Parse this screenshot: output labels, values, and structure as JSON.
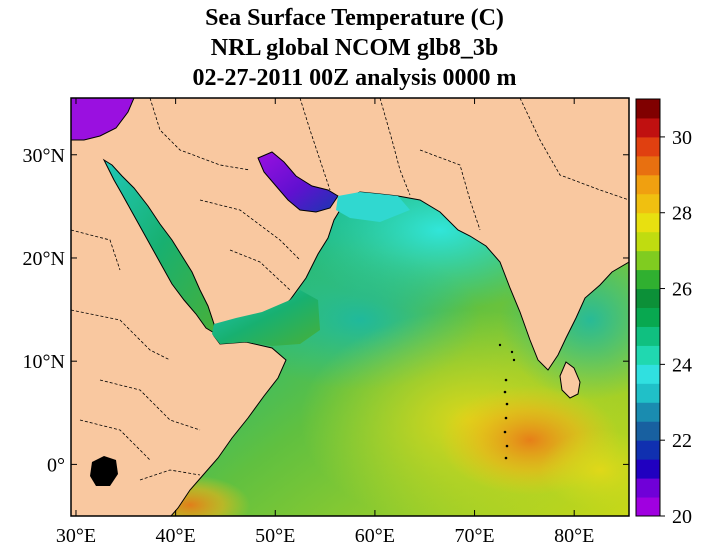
{
  "title": {
    "line1": "Sea Surface Temperature (C)",
    "line2": "NRL global NCOM glb8_3b",
    "line3": "02-27-2011 00Z analysis   0000 m"
  },
  "map": {
    "lon_range": [
      29.5,
      85.5
    ],
    "lat_range": [
      -5,
      35.5
    ],
    "x_ticks": [
      30,
      40,
      50,
      60,
      70,
      80
    ],
    "x_tick_labels": [
      "30°E",
      "40°E",
      "50°E",
      "60°E",
      "70°E",
      "80°E"
    ],
    "y_ticks": [
      0,
      10,
      20,
      30
    ],
    "y_tick_labels": [
      "0°",
      "10°N",
      "20°N",
      "30°N"
    ],
    "land_color": "#f9c8a0",
    "coast_color": "#000000",
    "border_style": "dashed"
  },
  "colorbar": {
    "min": 20,
    "max": 31,
    "tick_values": [
      20,
      22,
      24,
      26,
      28,
      30
    ],
    "tick_labels": [
      "20",
      "22",
      "24",
      "26",
      "28",
      "30"
    ],
    "colors": [
      "#a000e0",
      "#7000d8",
      "#2000c0",
      "#1030b0",
      "#1860a0",
      "#1a8cb0",
      "#20c0c8",
      "#30e0e0",
      "#20d8b0",
      "#10c080",
      "#08a850",
      "#0c9038",
      "#30b030",
      "#80cc20",
      "#c0dc10",
      "#e8e010",
      "#f0c010",
      "#f0a010",
      "#e87010",
      "#e04010",
      "#c01010",
      "#800000"
    ]
  }
}
